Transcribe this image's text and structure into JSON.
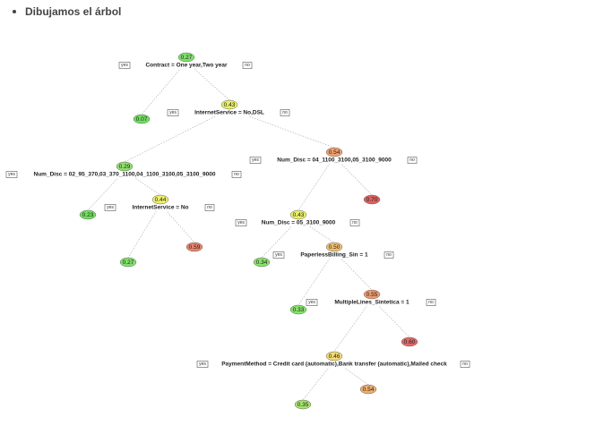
{
  "heading": {
    "text": "Dibujamos el árbol"
  },
  "tree": {
    "yes_label": "yes",
    "no_label": "no",
    "nodes": [
      {
        "id": "n1",
        "value": "0.27",
        "color": "#7fe06a",
        "leaf": false,
        "split": "Contract = One year,Two year"
      },
      {
        "id": "n2",
        "value": "0.07",
        "color": "#6ee05c",
        "leaf": true
      },
      {
        "id": "n3",
        "value": "0.43",
        "color": "#e8ee6a",
        "leaf": false,
        "split": "InternetService = No,DSL"
      },
      {
        "id": "n4",
        "value": "0.29",
        "color": "#8fe06a",
        "leaf": false,
        "split": "Num_Disc = 02_95_370,03_370_1100,04_1100_3100,05_3100_9000"
      },
      {
        "id": "n5",
        "value": "0.23",
        "color": "#72e05e",
        "leaf": true
      },
      {
        "id": "n6",
        "value": "0.44",
        "color": "#eeee70",
        "leaf": false,
        "split": "InternetService = No"
      },
      {
        "id": "n7",
        "value": "0.27",
        "color": "#7fe06a",
        "leaf": true
      },
      {
        "id": "n8",
        "value": "0.59",
        "color": "#e8846a",
        "leaf": true
      },
      {
        "id": "n9",
        "value": "0.54",
        "color": "#eea070",
        "leaf": false,
        "split": "Num_Disc = 04_1100_3100,05_3100_9000"
      },
      {
        "id": "n10",
        "value": "0.70",
        "color": "#e06060",
        "leaf": true
      },
      {
        "id": "n11",
        "value": "0.43",
        "color": "#e8ee6a",
        "leaf": false,
        "split": "Num_Disc = 05_3100_9000"
      },
      {
        "id": "n12",
        "value": "0.34",
        "color": "#8ae26a",
        "leaf": true
      },
      {
        "id": "n13",
        "value": "0.50",
        "color": "#f0c070",
        "leaf": false,
        "split": "PaperlessBilling_Sin = 1"
      },
      {
        "id": "n14",
        "value": "0.33",
        "color": "#86e26a",
        "leaf": true
      },
      {
        "id": "n15",
        "value": "0.55",
        "color": "#ee9a6c",
        "leaf": false,
        "split": "MultipleLines_Sintetica = 1"
      },
      {
        "id": "n16",
        "value": "0.60",
        "color": "#e06a66",
        "leaf": true
      },
      {
        "id": "n17",
        "value": "0.46",
        "color": "#f2da70",
        "leaf": false,
        "split": "PaymentMethod = Credit card (automatic),Bank transfer (automatic),Mailed check"
      },
      {
        "id": "n18",
        "value": "0.35",
        "color": "#a6e26a",
        "leaf": true
      },
      {
        "id": "n19",
        "value": "0.54",
        "color": "#eeae70",
        "leaf": true
      }
    ],
    "edges": [
      [
        "n1",
        "n2"
      ],
      [
        "n1",
        "n3"
      ],
      [
        "n3",
        "n4"
      ],
      [
        "n3",
        "n9"
      ],
      [
        "n4",
        "n5"
      ],
      [
        "n4",
        "n6"
      ],
      [
        "n6",
        "n7"
      ],
      [
        "n6",
        "n8"
      ],
      [
        "n9",
        "n11"
      ],
      [
        "n9",
        "n10"
      ],
      [
        "n11",
        "n12"
      ],
      [
        "n11",
        "n13"
      ],
      [
        "n13",
        "n14"
      ],
      [
        "n13",
        "n15"
      ],
      [
        "n15",
        "n17"
      ],
      [
        "n15",
        "n16"
      ],
      [
        "n17",
        "n18"
      ],
      [
        "n17",
        "n19"
      ]
    ]
  }
}
